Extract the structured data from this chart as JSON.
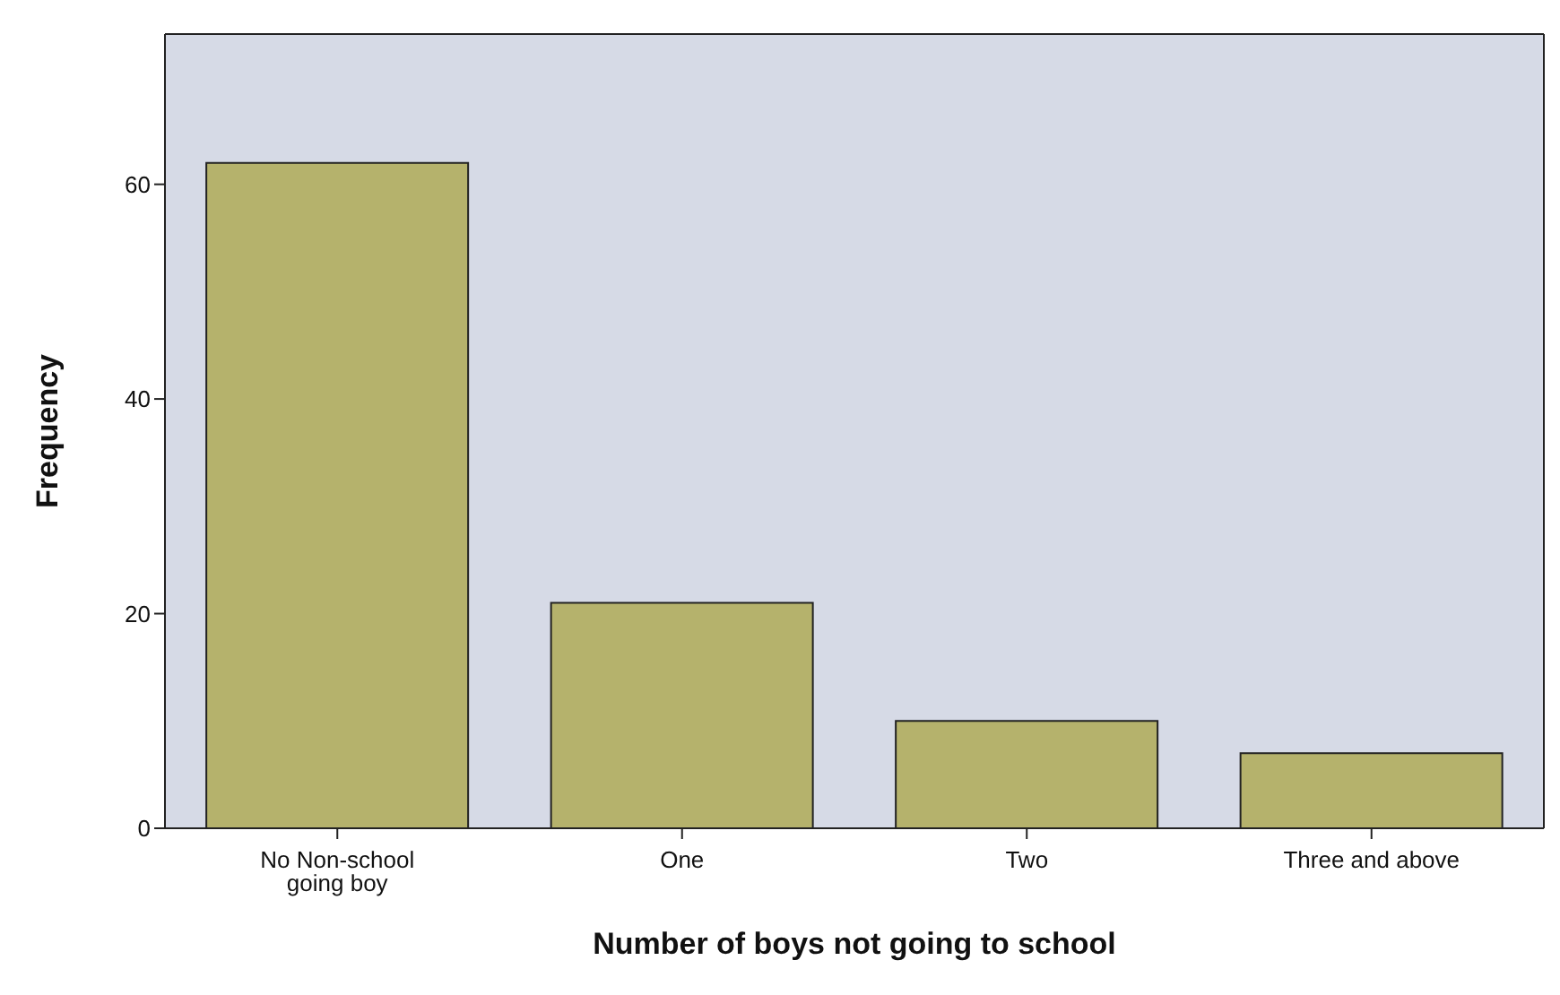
{
  "chart_data": {
    "type": "bar",
    "xlabel": "Number of boys not going to school",
    "ylabel": "Frequency",
    "categories": [
      "No Non-school going boy",
      "One",
      "Two",
      "Three and above"
    ],
    "values": [
      62,
      21,
      10,
      7
    ],
    "color": "#b5b26c",
    "ylim": [
      0,
      74
    ],
    "yticks": [
      0,
      20,
      40,
      60
    ],
    "grid": false,
    "legend": false
  }
}
